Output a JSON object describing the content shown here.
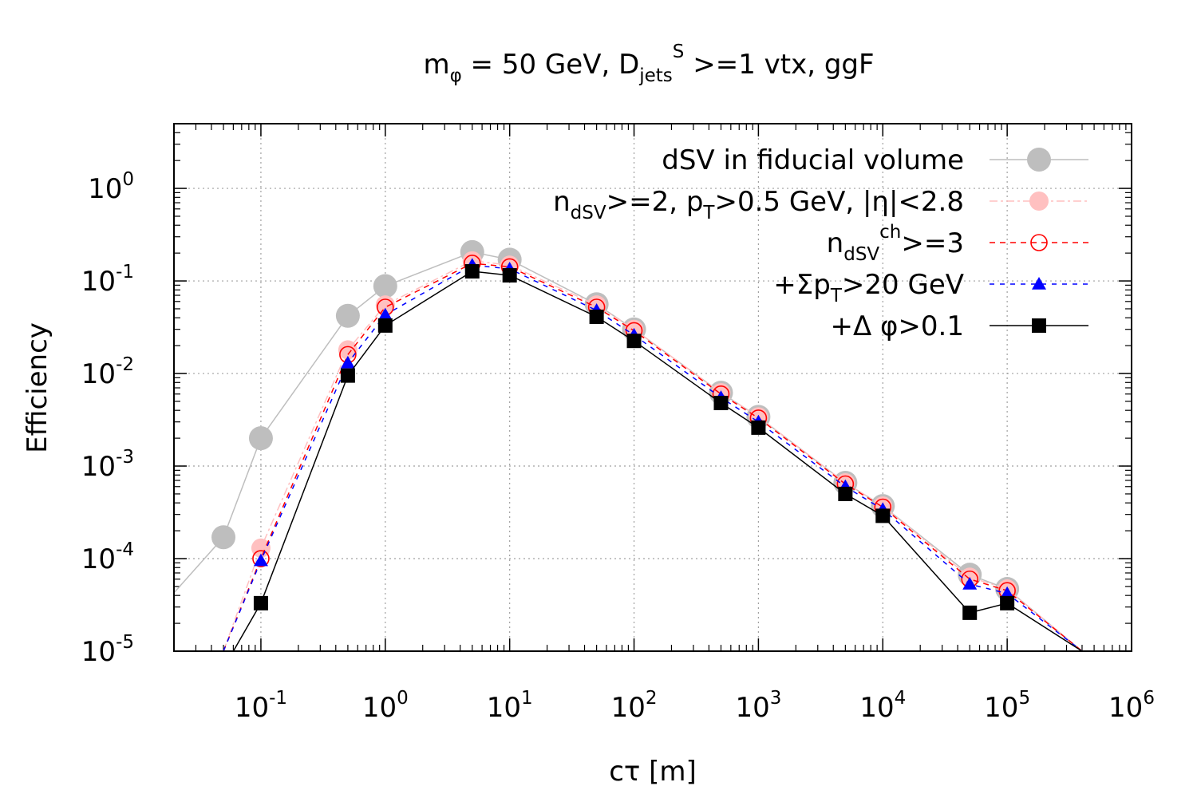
{
  "chart_data": {
    "type": "line",
    "title": {
      "prefix": "m",
      "prefix_sub": "φ",
      "middle": " = 50 GeV, D",
      "middle_sub": "jets",
      "middle_sup": "S",
      "suffix": " >=1 vtx, ggF"
    },
    "xlabel": "cτ [m]",
    "ylabel": "Efficiency",
    "xscale": "log",
    "yscale": "log",
    "xlim": [
      0.02,
      1000000
    ],
    "ylim": [
      1e-05,
      5
    ],
    "grid": true,
    "legend_position": "top-right",
    "x_ticks": [
      {
        "value": 0.1,
        "base": "10",
        "exp": "-1"
      },
      {
        "value": 1,
        "base": "10",
        "exp": "0"
      },
      {
        "value": 10,
        "base": "10",
        "exp": "1"
      },
      {
        "value": 100,
        "base": "10",
        "exp": "2"
      },
      {
        "value": 1000,
        "base": "10",
        "exp": "3"
      },
      {
        "value": 10000,
        "base": "10",
        "exp": "4"
      },
      {
        "value": 100000,
        "base": "10",
        "exp": "5"
      },
      {
        "value": 1000000,
        "base": "10",
        "exp": "6"
      }
    ],
    "y_ticks": [
      {
        "value": 1e-05,
        "base": "10",
        "exp": "-5"
      },
      {
        "value": 0.0001,
        "base": "10",
        "exp": "-4"
      },
      {
        "value": 0.001,
        "base": "10",
        "exp": "-3"
      },
      {
        "value": 0.01,
        "base": "10",
        "exp": "-2"
      },
      {
        "value": 0.1,
        "base": "10",
        "exp": "-1"
      },
      {
        "value": 1,
        "base": "10",
        "exp": "0"
      }
    ],
    "series": [
      {
        "id": "dsv-fiducial",
        "name": "dSV in fiducial volume",
        "legend_parts": [
          {
            "t": "dSV in fiducial volume"
          }
        ],
        "color": "#bebebe",
        "dash": "",
        "marker": "circle-filled-large",
        "x": [
          0.01,
          0.05,
          0.1,
          0.5,
          1,
          5,
          10,
          50,
          100,
          500,
          1000,
          5000,
          10000,
          50000,
          100000,
          400000
        ],
        "y": [
          1.5e-05,
          0.00017,
          0.002,
          0.042,
          0.088,
          0.205,
          0.17,
          0.056,
          0.03,
          0.0062,
          0.0034,
          0.00066,
          0.00037,
          6.7e-05,
          4.7e-05,
          1e-05
        ],
        "markers": [
          false,
          true,
          true,
          true,
          true,
          true,
          true,
          true,
          true,
          true,
          true,
          true,
          true,
          true,
          true,
          false
        ]
      },
      {
        "id": "ndsv-pt-eta",
        "name": "n_dSV>=2, p_T>0.5 GeV, |η|<2.8",
        "legend_parts": [
          {
            "t": "n"
          },
          {
            "t": "dSV",
            "sub": true
          },
          {
            "t": ">=2, p"
          },
          {
            "t": "T",
            "sub": true
          },
          {
            "t": ">0.5 GeV, |η|<2.8"
          }
        ],
        "color": "#ffc0c0",
        "dash": "10,4,3,4",
        "marker": "circle-filled",
        "x": [
          0.05,
          0.1,
          0.5,
          1,
          5,
          10,
          50,
          100,
          500,
          1000,
          5000,
          10000,
          50000,
          100000,
          400000
        ],
        "y": [
          1e-05,
          0.00013,
          0.018,
          0.055,
          0.165,
          0.148,
          0.055,
          0.03,
          0.0062,
          0.0034,
          0.00066,
          0.00037,
          6.3e-05,
          4.7e-05,
          1e-05
        ],
        "markers": [
          false,
          true,
          true,
          true,
          true,
          true,
          true,
          true,
          true,
          true,
          true,
          true,
          true,
          true,
          false
        ]
      },
      {
        "id": "ndsv-ch",
        "name": "n_dSV^ch>=3",
        "legend_parts": [
          {
            "t": "n"
          },
          {
            "t": "dSV",
            "sub": true
          },
          {
            "t": "ch",
            "sup": true
          },
          {
            "t": ">=3"
          }
        ],
        "color": "#ff0000",
        "dash": "7,6",
        "marker": "circle-open",
        "x": [
          0.05,
          0.1,
          0.5,
          1,
          5,
          10,
          50,
          100,
          500,
          1000,
          5000,
          10000,
          50000,
          100000,
          400000
        ],
        "y": [
          1e-05,
          0.0001,
          0.016,
          0.052,
          0.155,
          0.142,
          0.052,
          0.029,
          0.006,
          0.0033,
          0.00064,
          0.00036,
          6e-05,
          4.5e-05,
          1e-05
        ],
        "markers": [
          false,
          true,
          true,
          true,
          true,
          true,
          true,
          true,
          true,
          true,
          true,
          true,
          true,
          true,
          false
        ]
      },
      {
        "id": "sum-pt",
        "name": "+Σp_T>20 GeV",
        "legend_parts": [
          {
            "t": "+Σp"
          },
          {
            "t": "T",
            "sub": true
          },
          {
            "t": ">20 GeV"
          }
        ],
        "color": "#0000ff",
        "dash": "6,7",
        "marker": "triangle-filled",
        "x": [
          0.05,
          0.1,
          0.5,
          1,
          5,
          10,
          50,
          100,
          500,
          1000,
          5000,
          10000,
          50000,
          100000,
          400000
        ],
        "y": [
          1e-05,
          9.5e-05,
          0.013,
          0.043,
          0.148,
          0.135,
          0.048,
          0.026,
          0.0055,
          0.003,
          0.0006,
          0.00034,
          5.3e-05,
          4.2e-05,
          1e-05
        ],
        "markers": [
          false,
          true,
          true,
          true,
          true,
          true,
          true,
          true,
          true,
          true,
          true,
          true,
          true,
          true,
          false
        ]
      },
      {
        "id": "delta-phi",
        "name": "+Δ φ>0.1",
        "legend_parts": [
          {
            "t": "+Δ φ>0.1"
          }
        ],
        "color": "#000000",
        "dash": "",
        "marker": "square-filled",
        "x": [
          0.06,
          0.1,
          0.5,
          1,
          5,
          10,
          50,
          100,
          500,
          1000,
          5000,
          10000,
          50000,
          100000,
          400000
        ],
        "y": [
          1e-05,
          3.3e-05,
          0.0095,
          0.033,
          0.127,
          0.115,
          0.041,
          0.0225,
          0.0048,
          0.0026,
          0.0005,
          0.00029,
          2.6e-05,
          3.3e-05,
          1e-05
        ],
        "markers": [
          false,
          true,
          true,
          true,
          true,
          true,
          true,
          true,
          true,
          true,
          true,
          true,
          true,
          true,
          false
        ]
      }
    ]
  }
}
